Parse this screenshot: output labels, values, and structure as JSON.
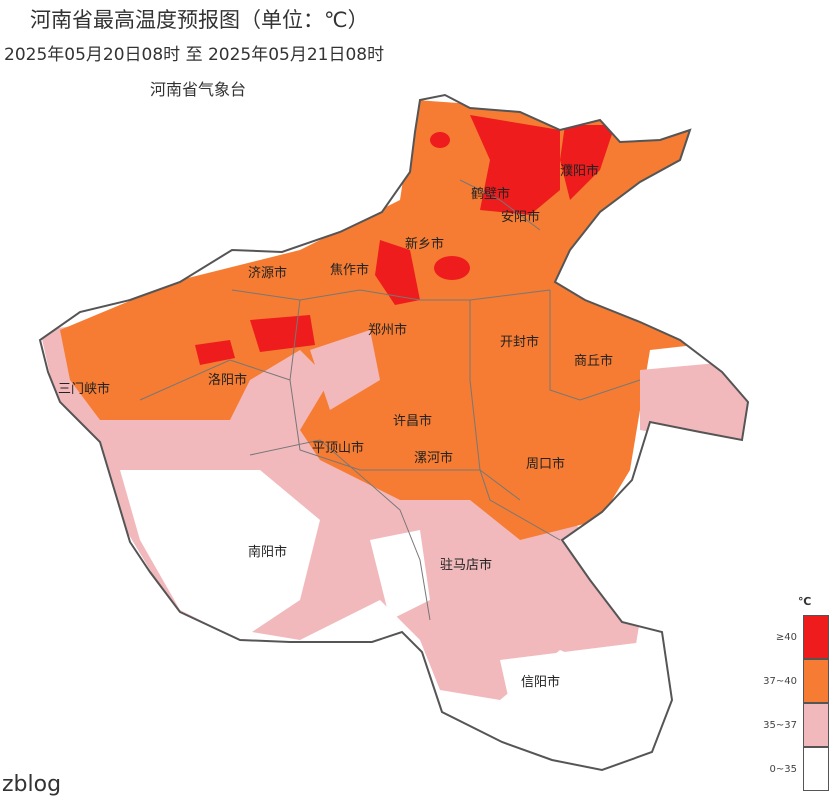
{
  "header": {
    "title": "河南省最高温度预报图（单位：℃）",
    "period": "2025年05月20日08时  至  2025年05月21日08时",
    "issuer": "河南省气象台"
  },
  "colors": {
    "ge40": "#ee1c1c",
    "37_40": "#f57c32",
    "35_37": "#f2b9bd",
    "0_35": "#ffffff",
    "border": "#666666"
  },
  "cities": [
    "濮阳市",
    "鹤壁市",
    "安阳市",
    "新乡市",
    "济源市",
    "焦作市",
    "郑州市",
    "开封市",
    "商丘市",
    "三门峡市",
    "洛阳市",
    "许昌市",
    "平顶山市",
    "漯河市",
    "周口市",
    "南阳市",
    "驻马店市",
    "信阳市"
  ],
  "legend": {
    "unit": "℃",
    "items": [
      "≥40",
      "37~40",
      "35~37",
      "0~35"
    ]
  },
  "watermark": "zblog"
}
